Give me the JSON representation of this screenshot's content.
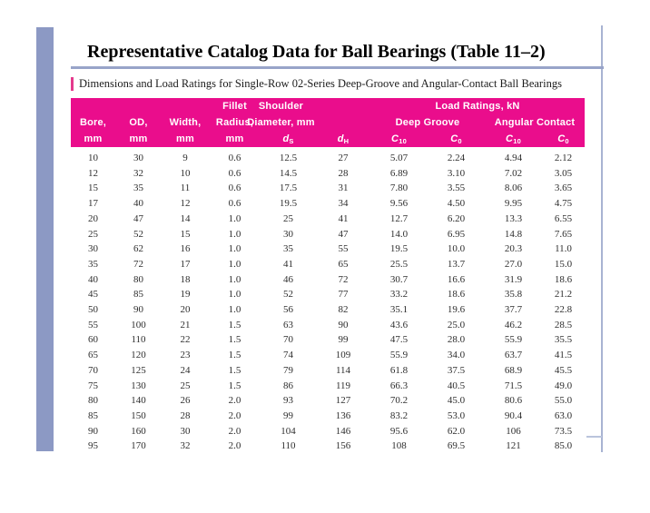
{
  "slide": {
    "title": "Representative Catalog Data for Ball Bearings (Table 11–2)",
    "subtitle": "Dimensions and Load Ratings for Single-Row 02-Series Deep-Groove and Angular-Contact Ball Bearings"
  },
  "colors": {
    "header_bg": "#EA0D8C",
    "sidebar": "#8C99C4",
    "title_rule": "#98A4C9",
    "right_border": "#A8B3D2",
    "subtitle_accent": "#E43A8D",
    "body_text": "#2E2E2E"
  },
  "table": {
    "header": {
      "fillet": "Fillet",
      "shoulder": "Shoulder",
      "load_ratings": "Load Ratings, kN",
      "bore": "Bore,",
      "od": "OD,",
      "width": "Width,",
      "radius": "Radius,",
      "diameter": "Diameter, mm",
      "deep_groove": "Deep Groove",
      "angular_contact": "Angular Contact",
      "mm": "mm"
    },
    "sym": {
      "d": "d",
      "S": "S",
      "H": "H",
      "C": "C",
      "ten": "10",
      "zero": "0"
    },
    "rows": [
      [
        "10",
        "30",
        "9",
        "0.6",
        "12.5",
        "27",
        "5.07",
        "2.24",
        "4.94",
        "2.12"
      ],
      [
        "12",
        "32",
        "10",
        "0.6",
        "14.5",
        "28",
        "6.89",
        "3.10",
        "7.02",
        "3.05"
      ],
      [
        "15",
        "35",
        "11",
        "0.6",
        "17.5",
        "31",
        "7.80",
        "3.55",
        "8.06",
        "3.65"
      ],
      [
        "17",
        "40",
        "12",
        "0.6",
        "19.5",
        "34",
        "9.56",
        "4.50",
        "9.95",
        "4.75"
      ],
      [
        "20",
        "47",
        "14",
        "1.0",
        "25",
        "41",
        "12.7",
        "6.20",
        "13.3",
        "6.55"
      ],
      [
        "25",
        "52",
        "15",
        "1.0",
        "30",
        "47",
        "14.0",
        "6.95",
        "14.8",
        "7.65"
      ],
      [
        "30",
        "62",
        "16",
        "1.0",
        "35",
        "55",
        "19.5",
        "10.0",
        "20.3",
        "11.0"
      ],
      [
        "35",
        "72",
        "17",
        "1.0",
        "41",
        "65",
        "25.5",
        "13.7",
        "27.0",
        "15.0"
      ],
      [
        "40",
        "80",
        "18",
        "1.0",
        "46",
        "72",
        "30.7",
        "16.6",
        "31.9",
        "18.6"
      ],
      [
        "45",
        "85",
        "19",
        "1.0",
        "52",
        "77",
        "33.2",
        "18.6",
        "35.8",
        "21.2"
      ],
      [
        "50",
        "90",
        "20",
        "1.0",
        "56",
        "82",
        "35.1",
        "19.6",
        "37.7",
        "22.8"
      ],
      [
        "55",
        "100",
        "21",
        "1.5",
        "63",
        "90",
        "43.6",
        "25.0",
        "46.2",
        "28.5"
      ],
      [
        "60",
        "110",
        "22",
        "1.5",
        "70",
        "99",
        "47.5",
        "28.0",
        "55.9",
        "35.5"
      ],
      [
        "65",
        "120",
        "23",
        "1.5",
        "74",
        "109",
        "55.9",
        "34.0",
        "63.7",
        "41.5"
      ],
      [
        "70",
        "125",
        "24",
        "1.5",
        "79",
        "114",
        "61.8",
        "37.5",
        "68.9",
        "45.5"
      ],
      [
        "75",
        "130",
        "25",
        "1.5",
        "86",
        "119",
        "66.3",
        "40.5",
        "71.5",
        "49.0"
      ],
      [
        "80",
        "140",
        "26",
        "2.0",
        "93",
        "127",
        "70.2",
        "45.0",
        "80.6",
        "55.0"
      ],
      [
        "85",
        "150",
        "28",
        "2.0",
        "99",
        "136",
        "83.2",
        "53.0",
        "90.4",
        "63.0"
      ],
      [
        "90",
        "160",
        "30",
        "2.0",
        "104",
        "146",
        "95.6",
        "62.0",
        "106",
        "73.5"
      ],
      [
        "95",
        "170",
        "32",
        "2.0",
        "110",
        "156",
        "108",
        "69.5",
        "121",
        "85.0"
      ]
    ]
  }
}
